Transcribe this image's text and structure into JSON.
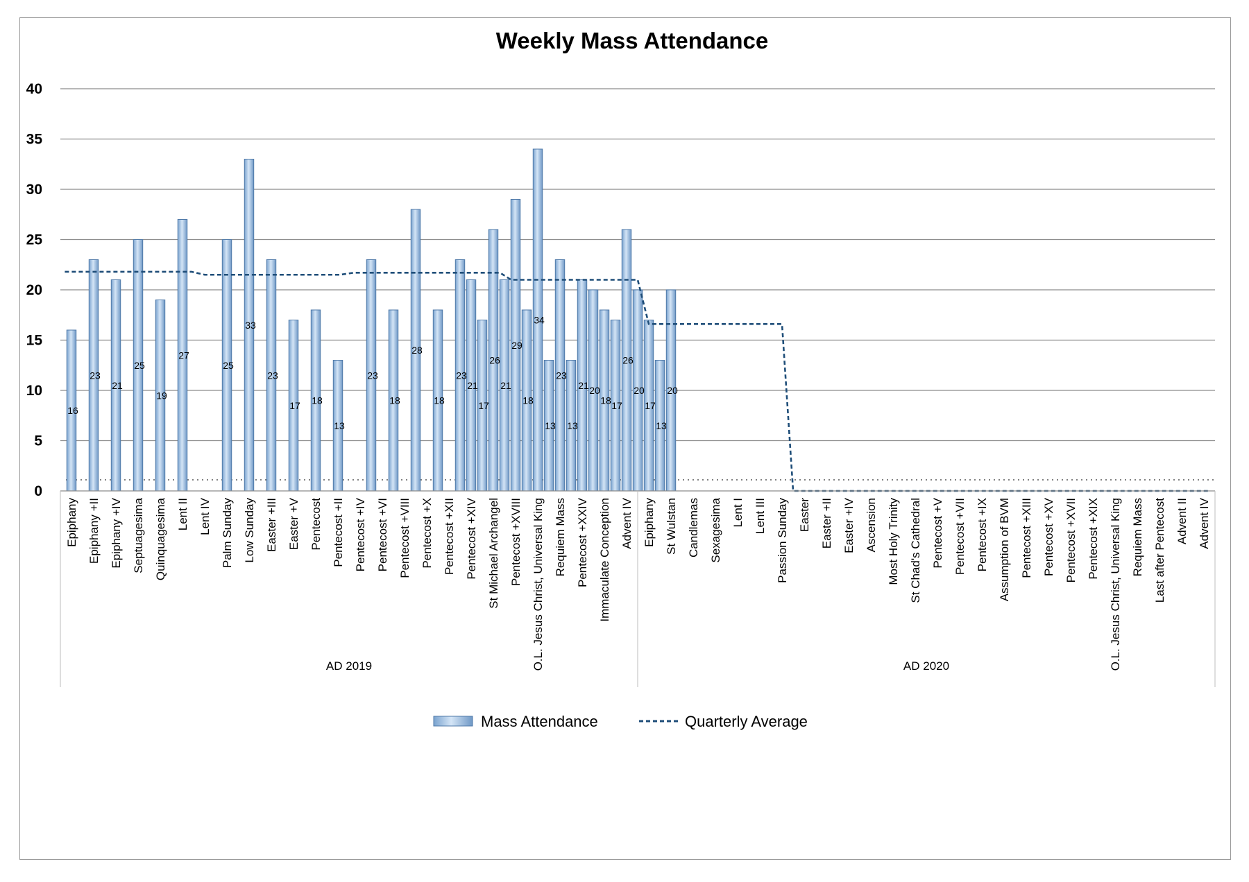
{
  "chart_data": {
    "type": "bar",
    "title": "Weekly Mass Attendance",
    "ylim": [
      0,
      40
    ],
    "yticks": [
      0,
      5,
      10,
      15,
      20,
      25,
      30,
      35,
      40
    ],
    "grid": true,
    "legend_position": "bottom",
    "categories": [
      "Epiphany",
      "Epiphany +II",
      "Epiphany +IV",
      "Septuagesima",
      "Quinquagesima",
      "Lent II",
      "Lent IV",
      "Palm Sunday",
      "Low Sunday",
      "Easter +III",
      "Easter +V",
      "Pentecost",
      "Pentecost +II",
      "Pentecost +IV",
      "Pentecost +VI",
      "Pentecost +VIII",
      "Pentecost +X",
      "Pentecost +XII",
      "Pentecost +XIV",
      "St Michael Archangel",
      "Pentecost +XVIII",
      "O.L. Jesus Christ, Universal King",
      "Requiem Mass",
      "Pentecost +XXIV",
      "Immaculate Conception",
      "Advent IV",
      "Epiphany",
      "St Wulstan",
      "Candlemas",
      "Sexagesima",
      "Lent I",
      "Lent III",
      "Passion Sunday",
      "Easter",
      "Easter +II",
      "Easter +IV",
      "Ascension",
      "Most Holy Trinity",
      "St Chad's Cathedral",
      "Pentecost +V",
      "Pentecost +VII",
      "Pentecost +IX",
      "Assumption of BVM",
      "Pentecost +XIII",
      "Pentecost +XV",
      "Pentecost +XVII",
      "Pentecost +XIX",
      "O.L. Jesus Christ, Universal King",
      "Requiem Mass",
      "Last after Pentecost",
      "Advent II",
      "Advent IV"
    ],
    "groups": [
      {
        "label": "AD 2019",
        "from_slot": 0,
        "to_slot": 26
      },
      {
        "label": "AD 2020",
        "from_slot": 26,
        "to_slot": 52
      }
    ],
    "series": [
      {
        "name": "Mass Attendance",
        "color": "#8fb4dc",
        "bars": [
          {
            "slot": 0.5,
            "value": 16
          },
          {
            "slot": 1.5,
            "value": 23
          },
          {
            "slot": 2.5,
            "value": 21
          },
          {
            "slot": 3.5,
            "value": 25
          },
          {
            "slot": 4.5,
            "value": 19
          },
          {
            "slot": 5.5,
            "value": 27
          },
          {
            "slot": 7.5,
            "value": 25
          },
          {
            "slot": 8.5,
            "value": 33
          },
          {
            "slot": 9.5,
            "value": 23
          },
          {
            "slot": 10.5,
            "value": 17
          },
          {
            "slot": 11.5,
            "value": 18
          },
          {
            "slot": 12.5,
            "value": 13
          },
          {
            "slot": 14.0,
            "value": 23
          },
          {
            "slot": 15.0,
            "value": 18
          },
          {
            "slot": 16.0,
            "value": 28
          },
          {
            "slot": 17.0,
            "value": 18
          },
          {
            "slot": 18.0,
            "value": 23
          },
          {
            "slot": 18.5,
            "value": 21
          },
          {
            "slot": 19.0,
            "value": 17
          },
          {
            "slot": 19.5,
            "value": 26
          },
          {
            "slot": 20.0,
            "value": 21
          },
          {
            "slot": 20.5,
            "value": 29
          },
          {
            "slot": 21.0,
            "value": 18
          },
          {
            "slot": 21.5,
            "value": 34
          },
          {
            "slot": 22.0,
            "value": 13
          },
          {
            "slot": 22.5,
            "value": 23
          },
          {
            "slot": 23.0,
            "value": 13
          },
          {
            "slot": 23.5,
            "value": 21
          },
          {
            "slot": 24.0,
            "value": 20
          },
          {
            "slot": 24.5,
            "value": 18
          },
          {
            "slot": 25.0,
            "value": 17
          },
          {
            "slot": 25.5,
            "value": 26
          },
          {
            "slot": 26.0,
            "value": 20
          },
          {
            "slot": 26.5,
            "value": 17
          },
          {
            "slot": 27.0,
            "value": 13
          },
          {
            "slot": 27.5,
            "value": 20
          }
        ]
      },
      {
        "name": "Quarterly Average",
        "color": "#1f4e79",
        "style": "dashed",
        "points": [
          {
            "slot": 0.2,
            "value": 21.8
          },
          {
            "slot": 5.9,
            "value": 21.8
          },
          {
            "slot": 6.5,
            "value": 21.5
          },
          {
            "slot": 12.6,
            "value": 21.5
          },
          {
            "slot": 13.2,
            "value": 21.7
          },
          {
            "slot": 19.8,
            "value": 21.7
          },
          {
            "slot": 20.3,
            "value": 21.0
          },
          {
            "slot": 26.0,
            "value": 21.0
          },
          {
            "slot": 26.5,
            "value": 16.6
          },
          {
            "slot": 32.5,
            "value": 16.6
          },
          {
            "slot": 33.0,
            "value": 0
          },
          {
            "slot": 51.8,
            "value": 0
          }
        ]
      }
    ],
    "reference_line": {
      "value": 1.1,
      "style": "dotted",
      "color": "#555555"
    },
    "x_labels": [
      {
        "slot": 0.5,
        "text": "Epiphany"
      },
      {
        "slot": 1.5,
        "text": "Epiphany +II"
      },
      {
        "slot": 2.5,
        "text": "Epiphany +IV"
      },
      {
        "slot": 3.5,
        "text": "Septuagesima"
      },
      {
        "slot": 4.5,
        "text": "Quinquagesima"
      },
      {
        "slot": 5.5,
        "text": "Lent II"
      },
      {
        "slot": 6.5,
        "text": "Lent IV"
      },
      {
        "slot": 7.5,
        "text": "Palm Sunday"
      },
      {
        "slot": 8.5,
        "text": "Low Sunday"
      },
      {
        "slot": 9.5,
        "text": "Easter +III"
      },
      {
        "slot": 10.5,
        "text": "Easter +V"
      },
      {
        "slot": 11.5,
        "text": "Pentecost"
      },
      {
        "slot": 12.5,
        "text": "Pentecost +II"
      },
      {
        "slot": 13.5,
        "text": "Pentecost +IV"
      },
      {
        "slot": 14.5,
        "text": "Pentecost +VI"
      },
      {
        "slot": 15.5,
        "text": "Pentecost +VIII"
      },
      {
        "slot": 16.5,
        "text": "Pentecost +X"
      },
      {
        "slot": 17.5,
        "text": "Pentecost +XII"
      },
      {
        "slot": 18.5,
        "text": "Pentecost +XIV"
      },
      {
        "slot": 19.5,
        "text": "St Michael Archangel"
      },
      {
        "slot": 20.5,
        "text": "Pentecost +XVIII"
      },
      {
        "slot": 21.5,
        "text": "O.L. Jesus Christ, Universal King"
      },
      {
        "slot": 22.5,
        "text": "Requiem Mass"
      },
      {
        "slot": 23.5,
        "text": "Pentecost +XXIV"
      },
      {
        "slot": 24.5,
        "text": "Immaculate Conception"
      },
      {
        "slot": 25.5,
        "text": "Advent IV"
      },
      {
        "slot": 26.5,
        "text": "Epiphany"
      },
      {
        "slot": 27.5,
        "text": "St Wulstan"
      },
      {
        "slot": 28.5,
        "text": "Candlemas"
      },
      {
        "slot": 29.5,
        "text": "Sexagesima"
      },
      {
        "slot": 30.5,
        "text": "Lent I"
      },
      {
        "slot": 31.5,
        "text": "Lent III"
      },
      {
        "slot": 32.5,
        "text": "Passion Sunday"
      },
      {
        "slot": 33.5,
        "text": "Easter"
      },
      {
        "slot": 34.5,
        "text": "Easter +II"
      },
      {
        "slot": 35.5,
        "text": "Easter +IV"
      },
      {
        "slot": 36.5,
        "text": "Ascension"
      },
      {
        "slot": 37.5,
        "text": "Most Holy Trinity"
      },
      {
        "slot": 38.5,
        "text": "St Chad's Cathedral"
      },
      {
        "slot": 39.5,
        "text": "Pentecost +V"
      },
      {
        "slot": 40.5,
        "text": "Pentecost +VII"
      },
      {
        "slot": 41.5,
        "text": "Pentecost +IX"
      },
      {
        "slot": 42.5,
        "text": "Assumption of BVM"
      },
      {
        "slot": 43.5,
        "text": "Pentecost +XIII"
      },
      {
        "slot": 44.5,
        "text": "Pentecost +XV"
      },
      {
        "slot": 45.5,
        "text": "Pentecost +XVII"
      },
      {
        "slot": 46.5,
        "text": "Pentecost +XIX"
      },
      {
        "slot": 47.5,
        "text": "O.L. Jesus Christ, Universal King"
      },
      {
        "slot": 48.5,
        "text": "Requiem Mass"
      },
      {
        "slot": 49.5,
        "text": "Last after Pentecost"
      },
      {
        "slot": 50.5,
        "text": "Advent II"
      },
      {
        "slot": 51.5,
        "text": "Advent IV"
      }
    ]
  }
}
